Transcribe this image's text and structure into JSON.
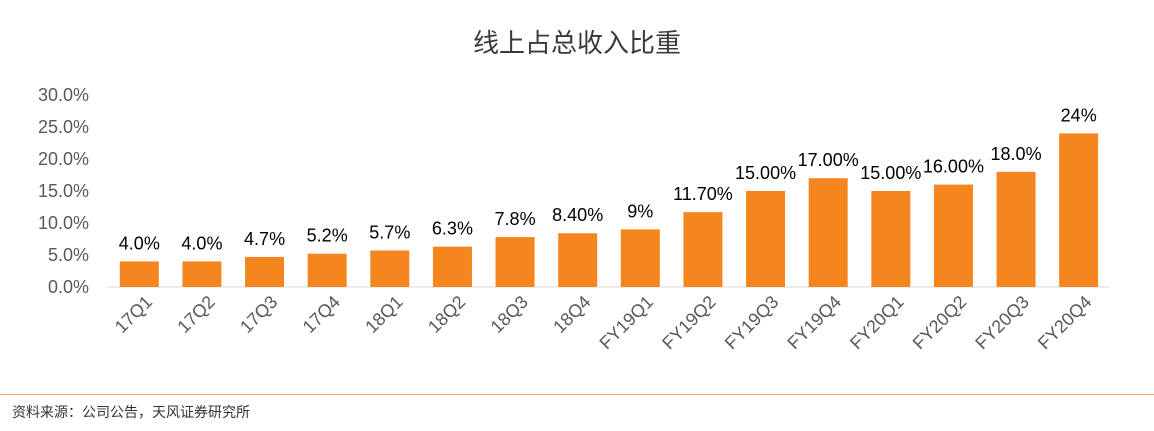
{
  "chart_data": {
    "type": "bar",
    "title": "线上占总收入比重",
    "xlabel": "",
    "ylabel": "",
    "ylim": [
      0,
      30
    ],
    "yticks": [
      "0.0%",
      "5.0%",
      "10.0%",
      "15.0%",
      "20.0%",
      "25.0%",
      "30.0%"
    ],
    "grid": false,
    "legend": "none",
    "bar_color": "#F5851F",
    "categories": [
      "17Q1",
      "17Q2",
      "17Q3",
      "17Q4",
      "18Q1",
      "18Q2",
      "18Q3",
      "18Q4",
      "FY19Q1",
      "FY19Q2",
      "FY19Q3",
      "FY19Q4",
      "FY20Q1",
      "FY20Q2",
      "FY20Q3",
      "FY20Q4"
    ],
    "values": [
      4.0,
      4.0,
      4.7,
      5.2,
      5.7,
      6.3,
      7.8,
      8.4,
      9,
      11.7,
      15.0,
      17.0,
      15.0,
      16.0,
      18.0,
      24
    ],
    "data_labels": [
      "4.0%",
      "4.0%",
      "4.7%",
      "5.2%",
      "5.7%",
      "6.3%",
      "7.8%",
      "8.40%",
      "9%",
      "11.70%",
      "15.00%",
      "17.00%",
      "15.00%",
      "16.00%",
      "18.0%",
      "24%"
    ]
  },
  "footer": {
    "source": "资料来源：公司公告，天风证券研究所"
  }
}
